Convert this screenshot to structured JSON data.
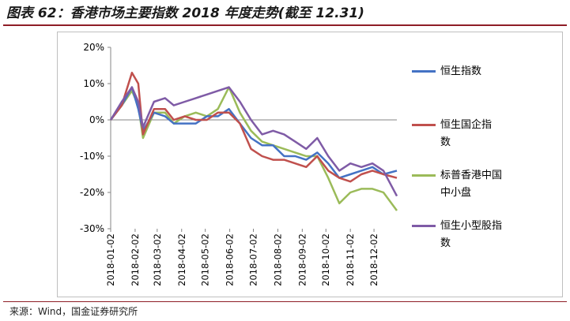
{
  "title": "图表 62：香港市场主要指数 2018 年度走势(截至 12.31)",
  "source": "来源：Wind，国金证券研究所",
  "chart_data": {
    "type": "line",
    "title": "图表 62：香港市场主要指数 2018 年度走势(截至 12.31)",
    "xlabel": "",
    "ylabel": "",
    "ylim": [
      -30,
      20
    ],
    "yticks": [
      20,
      10,
      0,
      -10,
      -20,
      -30
    ],
    "ytick_labels": [
      "20%",
      "10%",
      "0%",
      "-10%",
      "-20%",
      "-30%"
    ],
    "grid": false,
    "legend_position": "right",
    "x": [
      "2018-01-02",
      "2018-01-16",
      "2018-01-29",
      "2018-02-06",
      "2018-02-12",
      "2018-02-26",
      "2018-03-12",
      "2018-03-23",
      "2018-04-06",
      "2018-04-20",
      "2018-05-04",
      "2018-05-18",
      "2018-06-01",
      "2018-06-15",
      "2018-06-29",
      "2018-07-13",
      "2018-07-27",
      "2018-08-10",
      "2018-08-24",
      "2018-09-07",
      "2018-09-21",
      "2018-10-05",
      "2018-10-19",
      "2018-11-02",
      "2018-11-16",
      "2018-11-30",
      "2018-12-14",
      "2018-12-31"
    ],
    "xtick_labels": [
      "2018-01-02",
      "2018-02-02",
      "2018-03-02",
      "2018-04-02",
      "2018-05-02",
      "2018-06-02",
      "2018-07-02",
      "2018-08-02",
      "2018-09-02",
      "2018-10-02",
      "2018-11-02",
      "2018-12-02"
    ],
    "series": [
      {
        "name": "恒生指数",
        "color": "#4472c4",
        "values": [
          0,
          4,
          9,
          3,
          -3,
          2,
          1,
          -1,
          -1,
          -1,
          1,
          1,
          3,
          -1,
          -5,
          -7,
          -7,
          -10,
          -10,
          -11,
          -9,
          -12,
          -16,
          -15,
          -14,
          -13,
          -15,
          -14
        ]
      },
      {
        "name": "恒生国企指数",
        "color": "#c0504d",
        "values": [
          0,
          4,
          13,
          10,
          -4,
          3,
          3,
          0,
          1,
          0,
          0,
          2,
          2,
          -1,
          -8,
          -10,
          -11,
          -11,
          -12,
          -13,
          -10,
          -14,
          -16,
          -17,
          -15,
          -14,
          -15,
          -16
        ]
      },
      {
        "name": "标普香港中国中小盘",
        "color": "#9bbb59",
        "values": [
          0,
          4,
          8,
          4,
          -5,
          2,
          2,
          -1,
          1,
          2,
          1,
          3,
          9,
          2,
          -3,
          -6,
          -7,
          -8,
          -9,
          -10,
          -10,
          -16,
          -23,
          -20,
          -19,
          -19,
          -20,
          -25
        ]
      },
      {
        "name": "恒生小型股指数",
        "color": "#7f5ba6",
        "values": [
          0,
          5,
          9,
          5,
          -2,
          5,
          6,
          4,
          5,
          6,
          7,
          8,
          9,
          5,
          0,
          -4,
          -3,
          -4,
          -6,
          -8,
          -5,
          -10,
          -14,
          -12,
          -13,
          -12,
          -14,
          -21
        ]
      }
    ]
  }
}
